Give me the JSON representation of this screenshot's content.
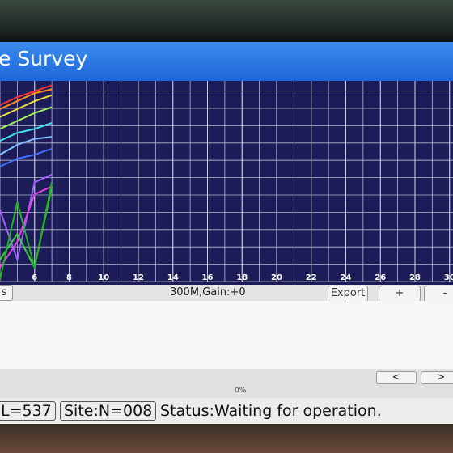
{
  "window": {
    "title": "e Survey"
  },
  "plot": {
    "type": "line",
    "xlim": [
      4,
      30.2
    ],
    "ylim": [
      0,
      100
    ],
    "xticks": [
      6,
      8,
      10,
      12,
      14,
      16,
      18,
      20,
      22,
      24,
      26,
      28,
      30
    ],
    "x": [
      4,
      5,
      6,
      7
    ],
    "series": [
      {
        "color": "#ff3030",
        "values": [
          89,
          93,
          96,
          99
        ]
      },
      {
        "color": "#ff9020",
        "values": [
          87,
          91,
          95,
          97
        ]
      },
      {
        "color": "#f0e040",
        "values": [
          83,
          87,
          91,
          94
        ]
      },
      {
        "color": "#a0f060",
        "values": [
          77,
          81,
          85,
          88
        ]
      },
      {
        "color": "#40e0f0",
        "values": [
          71,
          75,
          77,
          80
        ]
      },
      {
        "color": "#80c0ff",
        "values": [
          64,
          69,
          72,
          73
        ]
      },
      {
        "color": "#4070ff",
        "values": [
          58,
          62,
          64,
          67
        ]
      },
      {
        "color": "#a060ff",
        "values": [
          36,
          11,
          50,
          54
        ]
      },
      {
        "color": "#e040e0",
        "values": [
          7,
          20,
          44,
          48
        ]
      },
      {
        "color": "#40d040",
        "values": [
          11,
          24,
          7,
          48
        ]
      },
      {
        "color": "#20b020",
        "values": [
          1,
          40,
          7,
          50
        ]
      }
    ]
  },
  "toolbar": {
    "left_button": "s",
    "mode": "300M,Gain:+0",
    "export": "Export",
    "plus": "+",
    "minus": "-"
  },
  "nav": {
    "prev": "<",
    "next": ">",
    "progress": "0%"
  },
  "status": {
    "count": "L=537",
    "site": "Site:N=008",
    "message": "Status:Waiting for operation."
  }
}
